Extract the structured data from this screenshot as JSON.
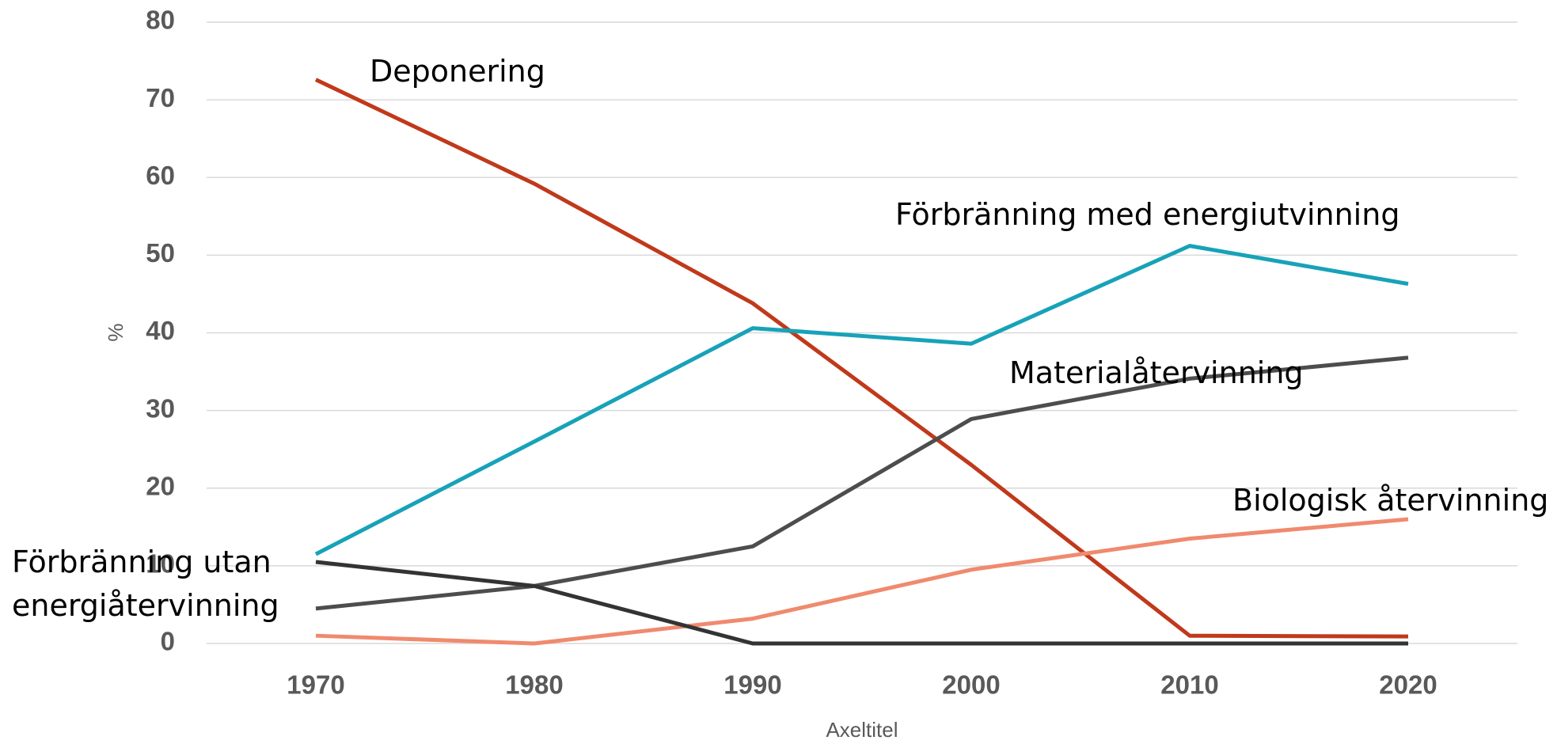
{
  "chart_data": {
    "type": "line",
    "x": [
      1970,
      1980,
      1990,
      2000,
      2010,
      2020
    ],
    "xlim": [
      1965,
      2025
    ],
    "xticks": [
      1970,
      1980,
      1990,
      2000,
      2010,
      2020
    ],
    "ylim": [
      0,
      80
    ],
    "yticks": [
      0,
      10,
      20,
      30,
      40,
      50,
      60,
      70,
      80
    ],
    "ylabel": "%",
    "xlabel": "Axeltitel",
    "grid": true,
    "series": [
      {
        "name": "Deponering",
        "color": "#c0391b",
        "values": [
          72.6,
          59.2,
          43.8,
          23.0,
          1.0,
          0.9
        ]
      },
      {
        "name": "Förbränning med energiutvinning",
        "color": "#17a2b8",
        "values": [
          11.5,
          26.0,
          40.6,
          38.6,
          51.2,
          46.3
        ]
      },
      {
        "name": "Materialåtervinning",
        "color": "#4d4d4d",
        "values": [
          4.5,
          7.4,
          12.5,
          28.9,
          34.1,
          36.8
        ]
      },
      {
        "name": "Biologisk återvinning",
        "color": "#f08a6e",
        "values": [
          1.0,
          0,
          3.2,
          9.5,
          13.5,
          16.0
        ]
      },
      {
        "name": "Förbränning utan energiåtervinning",
        "color": "#333333",
        "values": [
          10.5,
          7.4,
          0,
          0,
          0,
          0
        ]
      }
    ]
  }
}
